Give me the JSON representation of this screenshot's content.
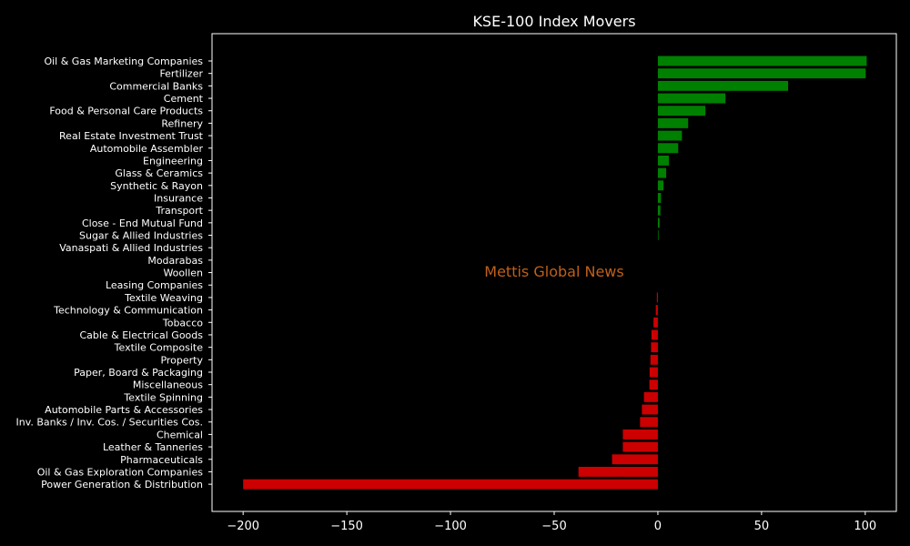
{
  "chart_data": {
    "type": "bar",
    "orientation": "horizontal",
    "title": "KSE-100 Index Movers",
    "xlabel": "",
    "ylabel": "",
    "xlim": [
      -215,
      115
    ],
    "x_ticks": [
      -200,
      -150,
      -100,
      -50,
      0,
      50,
      100
    ],
    "x_tick_labels": [
      "−200",
      "−150",
      "−100",
      "−50",
      "0",
      "50",
      "100"
    ],
    "grid": false,
    "watermark": "Mettis Global News",
    "colors": {
      "positive": "#008000",
      "negative": "#cc0000",
      "background": "#000000",
      "text": "#ffffff",
      "watermark": "#c0601a"
    },
    "categories": [
      "Oil & Gas Marketing Companies",
      "Fertilizer",
      "Commercial Banks",
      "Cement",
      "Food & Personal Care Products",
      "Refinery",
      "Real Estate Investment Trust",
      "Automobile Assembler",
      "Engineering",
      "Glass & Ceramics",
      "Synthetic & Rayon",
      "Insurance",
      "Transport",
      "Close - End Mutual Fund",
      "Sugar & Allied Industries",
      "Vanaspati & Allied Industries",
      "Modarabas",
      "Woollen",
      "Leasing Companies",
      "Textile Weaving",
      "Technology & Communication",
      "Tobacco",
      "Cable & Electrical Goods",
      "Textile Composite",
      "Property",
      "Paper, Board & Packaging",
      "Miscellaneous",
      "Textile Spinning",
      "Automobile Parts & Accessories",
      "Inv. Banks / Inv. Cos. / Securities Cos.",
      "Chemical",
      "Leather & Tanneries",
      "Pharmaceuticals",
      "Oil & Gas Exploration Companies",
      "Power Generation & Distribution"
    ],
    "values": [
      100.7,
      100.2,
      62.8,
      32.6,
      22.9,
      14.6,
      11.6,
      9.8,
      5.3,
      4.0,
      2.7,
      1.5,
      1.2,
      0.8,
      0.3,
      0,
      0,
      0,
      0,
      -0.5,
      -1.0,
      -2.1,
      -3.1,
      -3.3,
      -3.6,
      -4.0,
      -4.1,
      -6.7,
      -7.7,
      -8.6,
      -16.9,
      -16.9,
      -22.1,
      -38.3,
      -200.0
    ]
  }
}
